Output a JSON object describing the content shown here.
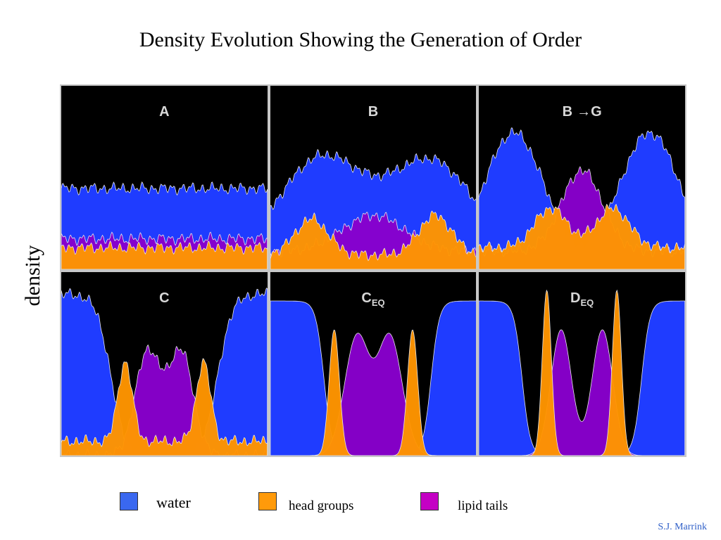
{
  "title": "Density Evolution Showing the Generation of Order",
  "credit": "S.J. Marrink",
  "colors": {
    "water": "#1f3cff",
    "head_groups": "#ff9500",
    "lipid_tails": "#8800cc",
    "background": "#000000"
  },
  "legend": [
    {
      "label": "water",
      "color": "#3a68f0"
    },
    {
      "label": "head groups",
      "color": "#ff9a0a"
    },
    {
      "label": "lipid tails",
      "color": "#c400c4"
    }
  ],
  "chart_data": {
    "type": "area",
    "ylabel": "density",
    "legend_position": "bottom",
    "panels": [
      {
        "name": "A",
        "sub": "",
        "water": {
          "peaks": [],
          "baseline": 0.45
        },
        "lipid_tails": {
          "peaks": [],
          "baseline": 0.17
        },
        "head_groups": {
          "peaks": [],
          "baseline": 0.12
        }
      },
      {
        "name": "B",
        "sub": "",
        "water": {
          "peaks": [
            [
              0.25,
              0.52,
              0.2
            ],
            [
              0.78,
              0.5,
              0.2
            ]
          ],
          "baseline": 0.1
        },
        "lipid_tails": {
          "peaks": [
            [
              0.5,
              0.2,
              0.15
            ]
          ],
          "baseline": 0.1
        },
        "head_groups": {
          "peaks": [
            [
              0.2,
              0.2,
              0.08
            ],
            [
              0.8,
              0.22,
              0.08
            ]
          ],
          "baseline": 0.08
        }
      },
      {
        "name": "B",
        "sub": "G",
        "water": {
          "peaks": [
            [
              0.17,
              0.76,
              0.15
            ],
            [
              0.83,
              0.76,
              0.15
            ]
          ],
          "baseline": 0.0
        },
        "lipid_tails": {
          "peaks": [
            [
              0.5,
              0.45,
              0.1
            ]
          ],
          "baseline": 0.1
        },
        "head_groups": {
          "peaks": [
            [
              0.35,
              0.22,
              0.08
            ],
            [
              0.65,
              0.22,
              0.08
            ]
          ],
          "baseline": 0.12
        }
      },
      {
        "name": "C",
        "sub": "",
        "water": {
          "plateaus": [
            [
              0.0,
              0.24
            ],
            [
              0.76,
              1.0
            ]
          ],
          "height": 0.9,
          "edge": 0.035
        },
        "lipid_tails": {
          "peaks": [
            [
              0.42,
              0.58,
              0.06
            ],
            [
              0.58,
              0.58,
              0.06
            ]
          ],
          "baseline": 0.0
        },
        "head_groups": {
          "peaks": [
            [
              0.31,
              0.44,
              0.035
            ],
            [
              0.69,
              0.44,
              0.035
            ]
          ],
          "baseline": 0.08
        }
      },
      {
        "name": "C",
        "sub": "EQ",
        "water": {
          "plateaus": [
            [
              0.0,
              0.26
            ],
            [
              0.78,
              1.0
            ]
          ],
          "height": 0.86,
          "edge": 0.02
        },
        "lipid_tails": {
          "peaks": [
            [
              0.42,
              0.66,
              0.06
            ],
            [
              0.58,
              0.66,
              0.06
            ]
          ],
          "baseline": 0.0
        },
        "head_groups": {
          "peaks": [
            [
              0.31,
              0.7,
              0.025
            ],
            [
              0.69,
              0.7,
              0.025
            ]
          ],
          "baseline": 0.0
        }
      },
      {
        "name": "D",
        "sub": "EQ",
        "water": {
          "plateaus": [
            [
              0.0,
              0.21
            ],
            [
              0.79,
              1.0
            ]
          ],
          "height": 0.86,
          "edge": 0.02
        },
        "lipid_tails": {
          "peaks": [
            [
              0.4,
              0.7,
              0.05
            ],
            [
              0.6,
              0.7,
              0.05
            ]
          ],
          "baseline": 0.0
        },
        "head_groups": {
          "peaks": [
            [
              0.33,
              0.92,
              0.022
            ],
            [
              0.67,
              0.92,
              0.022
            ]
          ],
          "baseline": 0.0
        }
      }
    ]
  }
}
